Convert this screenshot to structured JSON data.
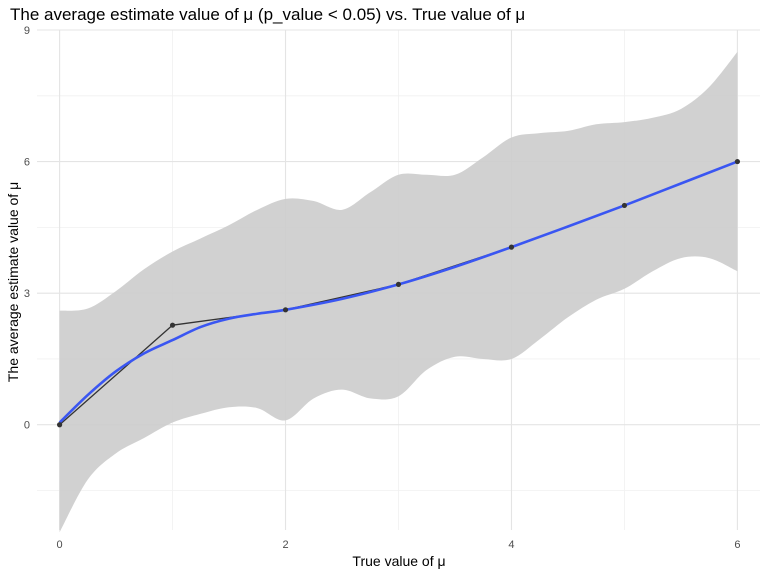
{
  "chart_data": {
    "type": "line",
    "title": "The average estimate value of μ (p_value < 0.05) vs. True value of μ",
    "xlabel": "True value of μ",
    "ylabel": "The average estimate value of μ",
    "xlim": [
      -0.2,
      6.2
    ],
    "ylim": [
      -2.4,
      9.0
    ],
    "x_ticks": [
      0,
      2,
      4,
      6
    ],
    "x_tick_labels": [
      "0",
      "2",
      "4",
      "6"
    ],
    "y_ticks": [
      0,
      3,
      6,
      9
    ],
    "y_tick_labels": [
      "0",
      "3",
      "6",
      "9"
    ],
    "grid": true,
    "legend": "none",
    "series": [
      {
        "kind": "points-and-line",
        "color": "#333333",
        "x": [
          0,
          1,
          2,
          3,
          4,
          5,
          6
        ],
        "y": [
          0.0,
          2.27,
          2.62,
          3.2,
          4.05,
          5.0,
          6.0
        ]
      },
      {
        "kind": "smooth-fit",
        "color": "#3a56f2",
        "x": [
          0,
          0.25,
          0.5,
          0.75,
          1.0,
          1.25,
          1.5,
          1.75,
          2.0,
          2.5,
          3.0,
          3.5,
          4.0,
          4.5,
          5.0,
          5.5,
          6.0
        ],
        "y": [
          0.05,
          0.68,
          1.22,
          1.63,
          1.93,
          2.23,
          2.42,
          2.53,
          2.62,
          2.87,
          3.2,
          3.6,
          4.05,
          4.52,
          5.0,
          5.5,
          6.0
        ]
      }
    ],
    "confidence_band": {
      "color": "#cccccc",
      "x": [
        0,
        0.25,
        0.5,
        0.75,
        1.0,
        1.25,
        1.5,
        1.75,
        2.0,
        2.25,
        2.5,
        2.75,
        3.0,
        3.25,
        3.5,
        3.75,
        4.0,
        4.25,
        4.5,
        4.75,
        5.0,
        5.25,
        5.5,
        5.75,
        6.0
      ],
      "upper": [
        2.6,
        2.65,
        3.05,
        3.55,
        3.95,
        4.25,
        4.55,
        4.9,
        5.15,
        5.1,
        4.9,
        5.3,
        5.7,
        5.7,
        5.7,
        6.1,
        6.55,
        6.65,
        6.7,
        6.85,
        6.9,
        7.0,
        7.2,
        7.7,
        8.5
      ],
      "lower": [
        -2.45,
        -1.25,
        -0.65,
        -0.3,
        0.05,
        0.25,
        0.4,
        0.38,
        0.1,
        0.6,
        0.8,
        0.6,
        0.65,
        1.25,
        1.55,
        1.5,
        1.5,
        1.95,
        2.45,
        2.85,
        3.1,
        3.5,
        3.8,
        3.8,
        3.5
      ]
    }
  }
}
